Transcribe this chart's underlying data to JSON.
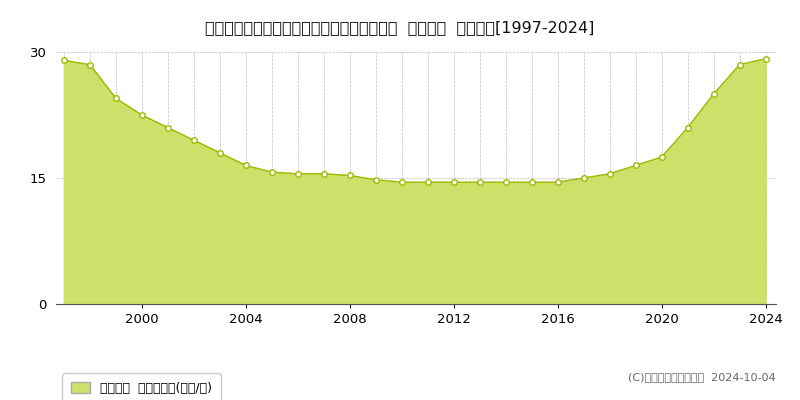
{
  "title": "北海道札幌市白石区北郷５条５丁目８番２２  基準地価  地価推移[1997-2024]",
  "years": [
    1997,
    1998,
    1999,
    2000,
    2001,
    2002,
    2003,
    2004,
    2005,
    2006,
    2007,
    2008,
    2009,
    2010,
    2011,
    2012,
    2013,
    2014,
    2015,
    2016,
    2017,
    2018,
    2019,
    2020,
    2021,
    2022,
    2023,
    2024
  ],
  "values": [
    29.0,
    28.5,
    24.5,
    22.5,
    21.0,
    19.5,
    18.0,
    16.5,
    15.7,
    15.5,
    15.5,
    15.3,
    14.8,
    14.5,
    14.5,
    14.5,
    14.5,
    14.5,
    14.5,
    14.5,
    15.0,
    15.5,
    16.5,
    17.5,
    21.0,
    25.0,
    28.5,
    29.2
  ],
  "fill_color": "#cfe06a",
  "line_color": "#9eb800",
  "marker_facecolor": "#ffffff",
  "marker_edgecolor": "#9eb800",
  "ylim": [
    0,
    30
  ],
  "yticks": [
    0,
    15,
    30
  ],
  "xticks": [
    2000,
    2004,
    2008,
    2012,
    2016,
    2020,
    2024
  ],
  "grid_color": "#bbbbbb",
  "background_color": "#ffffff",
  "plot_bg_color": "#ffffff",
  "legend_label": "基準地価  平均坪単価(万円/坪)",
  "legend_color": "#cfe06a",
  "copyright_text": "(C)土地価格ドットコム  2024-10-04",
  "title_fontsize": 11.5,
  "tick_fontsize": 9.5,
  "legend_fontsize": 9,
  "copyright_fontsize": 8
}
